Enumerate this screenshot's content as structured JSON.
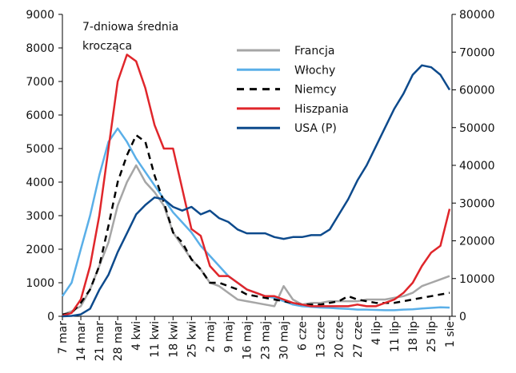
{
  "chart_data": {
    "type": "line",
    "annotation": [
      "7-dniowa średnia",
      "krocząca"
    ],
    "categories": [
      "7 mar",
      null,
      "14 mar",
      null,
      "21 mar",
      null,
      "28 mar",
      null,
      "4 kwi",
      null,
      "11 kwi",
      null,
      "18 kwi",
      null,
      "25 kwi",
      null,
      "2 maj",
      null,
      "9 maj",
      null,
      "16 maj",
      null,
      "23 maj",
      null,
      "30 maj",
      null,
      "6 cze",
      null,
      "13 cze",
      null,
      "20 cze",
      null,
      "27 cze",
      null,
      "4 lip",
      null,
      "11 lip",
      null,
      "18 lip",
      null,
      "25 lip",
      null,
      "1 sie"
    ],
    "series": [
      {
        "name": "Francja",
        "color": "#a6a6a6",
        "values": [
          50,
          150,
          300,
          800,
          1500,
          2200,
          3300,
          4000,
          4500,
          4000,
          3700,
          3300,
          2500,
          2100,
          1700,
          1400,
          1000,
          900,
          700,
          500,
          450,
          400,
          350,
          300,
          900,
          500,
          350,
          400,
          400,
          450,
          450,
          450,
          450,
          500,
          500,
          500,
          550,
          600,
          700,
          900,
          1000,
          1100,
          1200
        ]
      },
      {
        "name": "Włochy",
        "color": "#5aafe8",
        "values": [
          600,
          1000,
          2000,
          3000,
          4200,
          5200,
          5600,
          5200,
          4700,
          4300,
          3900,
          3500,
          3100,
          2800,
          2500,
          2100,
          1800,
          1500,
          1200,
          1000,
          800,
          700,
          600,
          550,
          450,
          350,
          300,
          280,
          260,
          250,
          230,
          220,
          200,
          200,
          190,
          180,
          180,
          200,
          210,
          230,
          250,
          270,
          260
        ]
      },
      {
        "name": "Niemcy",
        "color": "#000000",
        "line_style": "dashed",
        "values": [
          50,
          100,
          400,
          800,
          1500,
          2700,
          4000,
          4800,
          5400,
          5200,
          4200,
          3400,
          2500,
          2200,
          1700,
          1400,
          1000,
          1000,
          900,
          800,
          650,
          600,
          550,
          500,
          450,
          400,
          350,
          350,
          350,
          400,
          450,
          600,
          500,
          450,
          400,
          400,
          400,
          450,
          500,
          550,
          600,
          650,
          700
        ]
      },
      {
        "name": "Hiszpania",
        "color": "#e0262b",
        "values": [
          20,
          100,
          500,
          1500,
          3000,
          5000,
          7000,
          7800,
          7600,
          6800,
          5700,
          5000,
          5000,
          3800,
          2600,
          2400,
          1500,
          1200,
          1200,
          1000,
          800,
          700,
          600,
          600,
          500,
          400,
          350,
          300,
          300,
          300,
          300,
          300,
          350,
          300,
          300,
          400,
          500,
          700,
          1000,
          1500,
          1900,
          2100,
          3200
        ]
      },
      {
        "name": "USA (P)",
        "color": "#0d4a8c",
        "axis": "y2",
        "values": [
          0,
          100,
          500,
          2000,
          7000,
          11000,
          17000,
          22000,
          27000,
          29500,
          31500,
          31000,
          29000,
          28000,
          29000,
          27000,
          28000,
          26000,
          25000,
          23000,
          22000,
          22000,
          22000,
          21000,
          20500,
          21000,
          21000,
          21500,
          21500,
          23000,
          27000,
          31000,
          36000,
          40000,
          45000,
          50000,
          55000,
          59000,
          64000,
          66500,
          66000,
          64000,
          60000
        ]
      }
    ],
    "ylim": [
      0,
      9000
    ],
    "yticks": [
      0,
      1000,
      2000,
      3000,
      4000,
      5000,
      6000,
      7000,
      8000,
      9000
    ],
    "y2lim": [
      0,
      80000
    ],
    "y2ticks": [
      0,
      10000,
      20000,
      30000,
      40000,
      50000,
      60000,
      70000,
      80000
    ]
  }
}
